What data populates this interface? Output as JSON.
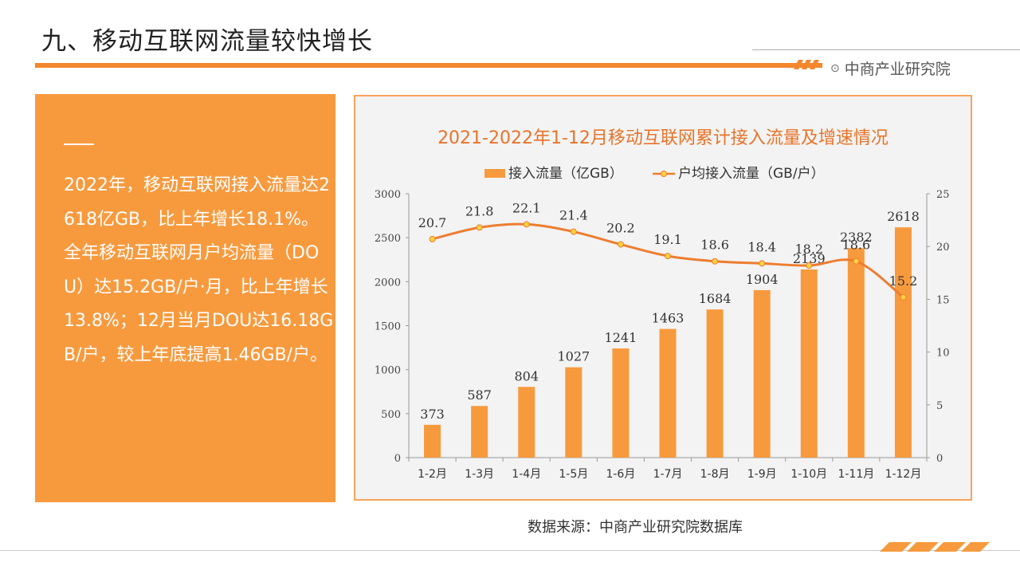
{
  "page": {
    "title": "九、移动互联网流量较快增长",
    "brand": "中商产业研究院",
    "source": "数据来源：中商产业研究院数据库"
  },
  "summary": {
    "text": "2022年，移动互联网接入流量达2618亿GB，比上年增长18.1%。全年移动互联网月户均流量（DOU）达15.2GB/户·月，比上年增长13.8%；12月当月DOU达16.18GB/户，较上年底提高1.46GB/户。"
  },
  "colors": {
    "accent": "#f4862c",
    "panel": "#f79a3e",
    "bar": "#f79a3e",
    "line": "#ed7d31",
    "marker": "#ffd23f",
    "chart_title": "#e8742a"
  },
  "icons": {
    "brand": "target-icon"
  },
  "chart_data": {
    "type": "bar",
    "title": "2021-2022年1-12月移动互联网累计接入流量及增速情况",
    "categories": [
      "1-2月",
      "1-3月",
      "1-4月",
      "1-5月",
      "1-6月",
      "1-7月",
      "1-8月",
      "1-9月",
      "1-10月",
      "1-11月",
      "1-12月"
    ],
    "series": [
      {
        "name": "接入流量（亿GB）",
        "type": "bar",
        "axis": "left",
        "values": [
          373,
          587,
          804,
          1027,
          1241,
          1463,
          1684,
          1904,
          2139,
          2382,
          2618
        ]
      },
      {
        "name": "户均接入流量（GB/户）",
        "type": "line",
        "axis": "right",
        "values": [
          20.7,
          21.8,
          22.1,
          21.4,
          20.2,
          19.1,
          18.6,
          18.4,
          18.2,
          18.6,
          15.2
        ]
      }
    ],
    "ylim_left": [
      0,
      3000
    ],
    "yticks_left": [
      0,
      500,
      1000,
      1500,
      2000,
      2500,
      3000
    ],
    "ylim_right": [
      0,
      25
    ],
    "yticks_right": [
      0,
      5,
      10,
      15,
      20,
      25
    ],
    "legend_position": "top-center",
    "grid": false
  }
}
